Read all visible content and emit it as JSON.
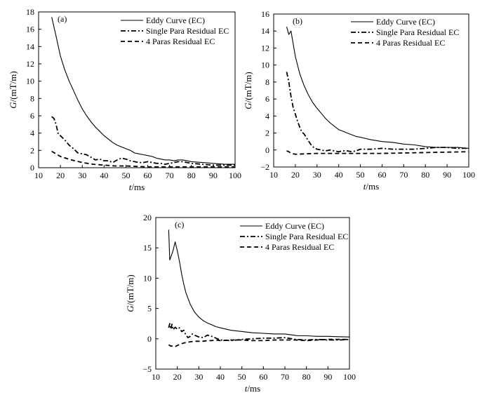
{
  "chart_data": [
    {
      "type": "line",
      "panel_label": "(a)",
      "xlabel_var": "t",
      "xlabel_unit": "/ms",
      "ylabel_var": "G",
      "ylabel_unit": "/(mT/m)",
      "xlim": [
        10,
        100
      ],
      "ylim": [
        0,
        18
      ],
      "xticks": [
        10,
        20,
        30,
        40,
        50,
        60,
        70,
        80,
        90,
        100
      ],
      "yticks": [
        0,
        2,
        4,
        6,
        8,
        10,
        12,
        14,
        16,
        18
      ],
      "legend_position": "top-right",
      "series": [
        {
          "name": "Eddy Curve (EC)",
          "style": "solid",
          "x": [
            16,
            18,
            20,
            22,
            24,
            26,
            28,
            30,
            32,
            34,
            36,
            38,
            40,
            42,
            44,
            46,
            48,
            50,
            52,
            54,
            56,
            58,
            60,
            62,
            64,
            66,
            68,
            70,
            72,
            74,
            76,
            78,
            80,
            85,
            90,
            95,
            100
          ],
          "y": [
            17.4,
            15.2,
            12.9,
            11.3,
            10.0,
            8.9,
            7.8,
            6.8,
            6.0,
            5.3,
            4.7,
            4.2,
            3.7,
            3.3,
            2.9,
            2.6,
            2.4,
            2.2,
            2.0,
            1.7,
            1.6,
            1.5,
            1.4,
            1.3,
            1.1,
            1.0,
            0.9,
            0.9,
            0.8,
            0.9,
            0.9,
            0.8,
            0.7,
            0.6,
            0.5,
            0.4,
            0.4
          ]
        },
        {
          "name": "Single Para Residual EC",
          "style": "dashdot",
          "x": [
            16,
            17,
            18,
            19,
            20,
            22,
            24,
            26,
            28,
            30,
            32,
            34,
            36,
            38,
            40,
            42,
            44,
            46,
            48,
            50,
            52,
            54,
            56,
            58,
            60,
            62,
            64,
            66,
            68,
            70,
            72,
            74,
            76,
            78,
            80,
            85,
            90,
            95,
            100
          ],
          "y": [
            5.9,
            5.7,
            5.0,
            3.9,
            3.7,
            3.2,
            2.6,
            2.2,
            1.7,
            1.6,
            1.5,
            1.2,
            0.9,
            1.0,
            0.8,
            0.8,
            0.6,
            0.9,
            1.1,
            1.0,
            0.8,
            0.7,
            0.6,
            0.6,
            0.7,
            0.6,
            0.5,
            0.5,
            0.4,
            0.5,
            0.6,
            0.7,
            0.7,
            0.6,
            0.5,
            0.4,
            0.3,
            0.3,
            0.3
          ]
        },
        {
          "name": "4 Paras Residual EC",
          "style": "dashed",
          "x": [
            16,
            18,
            20,
            25,
            30,
            35,
            40,
            45,
            50,
            55,
            60,
            65,
            70,
            75,
            80,
            85,
            90,
            95,
            100
          ],
          "y": [
            1.9,
            1.6,
            1.3,
            0.9,
            0.6,
            0.4,
            0.3,
            0.2,
            0.2,
            0.15,
            0.1,
            0.1,
            0.1,
            0.1,
            0.1,
            0.1,
            0.1,
            0.1,
            0.1
          ]
        }
      ]
    },
    {
      "type": "line",
      "panel_label": "(b)",
      "xlabel_var": "t",
      "xlabel_unit": "/ms",
      "ylabel_var": "G",
      "ylabel_unit": "/(mT/m)",
      "xlim": [
        10,
        100
      ],
      "ylim": [
        -2,
        16
      ],
      "xticks": [
        10,
        20,
        30,
        40,
        50,
        60,
        70,
        80,
        90,
        100
      ],
      "yticks": [
        -2,
        0,
        2,
        4,
        6,
        8,
        10,
        12,
        14,
        16
      ],
      "legend_position": "top-right",
      "series": [
        {
          "name": "Eddy Curve (EC)",
          "style": "solid",
          "x": [
            16,
            17,
            18,
            19,
            20,
            22,
            24,
            26,
            28,
            30,
            32,
            34,
            36,
            38,
            40,
            42,
            44,
            46,
            48,
            50,
            55,
            60,
            65,
            70,
            75,
            80,
            85,
            90,
            95,
            100
          ],
          "y": [
            14.5,
            13.6,
            14.0,
            12.5,
            11.0,
            9.0,
            7.6,
            6.5,
            5.6,
            4.9,
            4.3,
            3.7,
            3.2,
            2.8,
            2.4,
            2.2,
            2.0,
            1.8,
            1.6,
            1.5,
            1.2,
            1.0,
            0.9,
            0.7,
            0.6,
            0.4,
            0.3,
            0.3,
            0.3,
            0.2
          ]
        },
        {
          "name": "Single Para Residual EC",
          "style": "dashdot",
          "x": [
            16,
            17,
            18,
            19,
            20,
            21,
            22,
            23,
            24,
            25,
            26,
            27,
            28,
            29,
            30,
            32,
            34,
            36,
            38,
            40,
            42,
            44,
            46,
            48,
            50,
            55,
            60,
            65,
            70,
            75,
            80,
            85,
            90,
            95,
            100
          ],
          "y": [
            9.2,
            8.0,
            6.3,
            5.0,
            4.2,
            3.4,
            2.7,
            2.1,
            1.9,
            1.5,
            1.1,
            0.7,
            0.4,
            0.2,
            0.1,
            0.0,
            -0.1,
            0.0,
            -0.1,
            -0.2,
            -0.1,
            -0.1,
            -0.2,
            -0.1,
            0.1,
            0.1,
            0.2,
            0.1,
            0.1,
            0.1,
            0.2,
            0.3,
            0.3,
            0.2,
            0.2
          ]
        },
        {
          "name": "4 Paras Residual EC",
          "style": "dashed",
          "x": [
            16,
            17,
            18,
            20,
            25,
            30,
            40,
            50,
            60,
            70,
            80,
            90,
            100
          ],
          "y": [
            -0.1,
            -0.2,
            -0.4,
            -0.5,
            -0.45,
            -0.4,
            -0.4,
            -0.4,
            -0.4,
            -0.35,
            -0.3,
            -0.25,
            -0.2
          ]
        }
      ]
    },
    {
      "type": "line",
      "panel_label": "(c)",
      "xlabel_var": "t",
      "xlabel_unit": "/ms",
      "ylabel_var": "G",
      "ylabel_unit": "/(mT/m)",
      "xlim": [
        10,
        100
      ],
      "ylim": [
        -5,
        20
      ],
      "xticks": [
        10,
        20,
        30,
        40,
        50,
        60,
        70,
        80,
        90,
        100
      ],
      "yticks": [
        -5,
        0,
        5,
        10,
        15,
        20
      ],
      "legend_position": "top-right",
      "series": [
        {
          "name": "Eddy Curve (EC)",
          "style": "solid",
          "x": [
            16,
            16.5,
            17,
            18,
            19,
            20,
            21,
            22,
            23,
            24,
            26,
            28,
            30,
            32,
            34,
            36,
            38,
            40,
            45,
            50,
            55,
            60,
            65,
            70,
            72,
            74,
            76,
            80,
            85,
            90,
            95,
            100
          ],
          "y": [
            18.0,
            13.0,
            13.5,
            14.5,
            16.0,
            14.5,
            12.8,
            10.7,
            9.0,
            7.6,
            5.7,
            4.4,
            3.6,
            3.0,
            2.6,
            2.3,
            2.0,
            1.8,
            1.4,
            1.2,
            1.0,
            0.9,
            0.8,
            0.8,
            0.7,
            0.6,
            0.5,
            0.5,
            0.4,
            0.4,
            0.35,
            0.3
          ]
        },
        {
          "name": "Single Para Residual EC",
          "style": "dashdot",
          "x": [
            16,
            16.5,
            17,
            17.5,
            18,
            19,
            20,
            21,
            22,
            23,
            24,
            25,
            26,
            27,
            28,
            30,
            32,
            34,
            36,
            38,
            40,
            45,
            50,
            55,
            60,
            65,
            70,
            75,
            80,
            85,
            90,
            95,
            100
          ],
          "y": [
            1.8,
            2.5,
            1.6,
            2.4,
            1.5,
            1.9,
            1.6,
            1.8,
            1.2,
            1.4,
            0.6,
            0.2,
            0.4,
            0.8,
            0.6,
            0.3,
            0.2,
            0.6,
            0.4,
            0.1,
            -0.2,
            -0.3,
            -0.1,
            0.0,
            0.1,
            0.1,
            0.2,
            -0.1,
            -0.2,
            -0.1,
            -0.2,
            -0.2,
            -0.1
          ]
        },
        {
          "name": "4 Paras Residual EC",
          "style": "dashed",
          "x": [
            16,
            17,
            18,
            19,
            20,
            22,
            24,
            26,
            28,
            30,
            32,
            34,
            36,
            38,
            40,
            45,
            50,
            55,
            60,
            65,
            70,
            75,
            80,
            85,
            90,
            95,
            100
          ],
          "y": [
            -1.0,
            -1.2,
            -1.2,
            -1.3,
            -1.1,
            -0.8,
            -0.6,
            -0.5,
            -0.4,
            -0.4,
            -0.4,
            -0.3,
            -0.3,
            -0.2,
            -0.3,
            -0.2,
            -0.2,
            -0.3,
            -0.3,
            -0.2,
            -0.2,
            -0.2,
            -0.3,
            -0.2,
            -0.1,
            -0.1,
            -0.1
          ]
        }
      ]
    }
  ]
}
